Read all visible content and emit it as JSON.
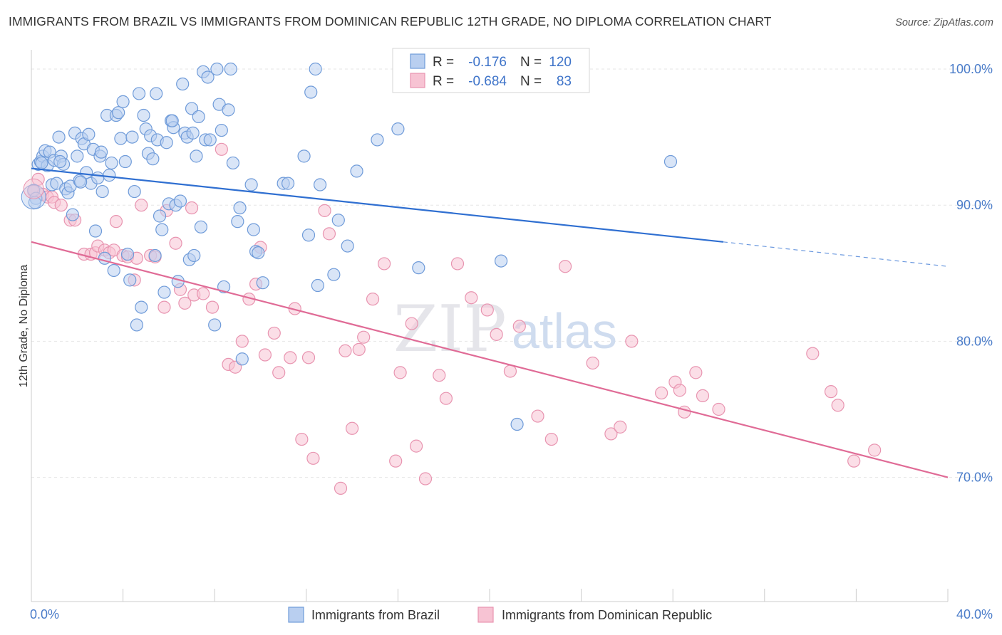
{
  "title": "IMMIGRANTS FROM BRAZIL VS IMMIGRANTS FROM DOMINICAN REPUBLIC 12TH GRADE, NO DIPLOMA CORRELATION CHART",
  "source": "Source: ZipAtlas.com",
  "watermark": {
    "zip": "ZIP",
    "atlas": "atlas"
  },
  "legend": {
    "r_label": "R =",
    "n_label": "N =",
    "rows": [
      {
        "r": "-0.176",
        "n": "120"
      },
      {
        "r": "-0.684",
        "n": "83"
      }
    ]
  },
  "bottom_legend": [
    "Immigrants from Brazil",
    "Immigrants from Dominican Republic"
  ],
  "colors": {
    "brazil_fill": "#b9cff0",
    "brazil_stroke": "#6f9bd9",
    "brazil_line": "#2f6fd1",
    "dr_fill": "#f7c3d3",
    "dr_stroke": "#e894b0",
    "dr_line": "#e06b96",
    "grid": "#e6e6e6",
    "axis_text": "#4a7cc9"
  },
  "chart_data": {
    "type": "scatter",
    "title": "IMMIGRANTS FROM BRAZIL VS IMMIGRANTS FROM DOMINICAN REPUBLIC 12TH GRADE, NO DIPLOMA CORRELATION CHART",
    "xlabel": "",
    "ylabel": "12th Grade, No Diploma",
    "x_tick_labels": [
      "0.0%",
      "40.0%"
    ],
    "y_tick_labels": [
      "100.0%",
      "90.0%",
      "80.0%",
      "70.0%"
    ],
    "y_ticks": [
      100,
      90,
      80,
      70
    ],
    "xlim": [
      0,
      40
    ],
    "ylim": [
      60.5,
      101.5
    ],
    "grid": true,
    "legend_position": "top-center",
    "series": [
      {
        "name": "Immigrants from Brazil",
        "R": -0.176,
        "N": 120,
        "trend": {
          "x0": 0,
          "y0": 92.7,
          "x1": 30.2,
          "y1": 87.3,
          "dashed_to_x": 40,
          "dashed_to_y": 85.5
        },
        "points": [
          [
            0.1,
            91.1
          ],
          [
            0.2,
            90.5
          ],
          [
            0.3,
            93.0
          ],
          [
            0.4,
            93.2
          ],
          [
            0.5,
            93.6
          ],
          [
            0.6,
            94.0
          ],
          [
            0.7,
            92.9
          ],
          [
            0.8,
            93.9
          ],
          [
            0.9,
            91.5
          ],
          [
            1.0,
            93.3
          ],
          [
            1.1,
            91.6
          ],
          [
            1.2,
            95.0
          ],
          [
            1.3,
            93.6
          ],
          [
            1.4,
            93.0
          ],
          [
            1.5,
            91.2
          ],
          [
            1.6,
            90.9
          ],
          [
            1.7,
            91.4
          ],
          [
            1.8,
            89.3
          ],
          [
            1.9,
            95.3
          ],
          [
            2.0,
            93.6
          ],
          [
            2.1,
            91.8
          ],
          [
            2.2,
            94.9
          ],
          [
            2.3,
            94.5
          ],
          [
            2.4,
            92.4
          ],
          [
            2.5,
            95.2
          ],
          [
            2.6,
            91.6
          ],
          [
            2.7,
            94.1
          ],
          [
            2.8,
            88.1
          ],
          [
            2.9,
            92.0
          ],
          [
            3.0,
            93.6
          ],
          [
            3.1,
            91.0
          ],
          [
            3.2,
            86.1
          ],
          [
            3.3,
            96.6
          ],
          [
            3.4,
            92.2
          ],
          [
            3.5,
            93.1
          ],
          [
            3.6,
            85.2
          ],
          [
            3.7,
            96.6
          ],
          [
            3.8,
            96.8
          ],
          [
            3.9,
            94.9
          ],
          [
            4.0,
            97.6
          ],
          [
            4.1,
            93.2
          ],
          [
            4.2,
            86.4
          ],
          [
            4.3,
            84.5
          ],
          [
            4.4,
            95.0
          ],
          [
            4.5,
            91.0
          ],
          [
            4.6,
            81.2
          ],
          [
            4.7,
            98.2
          ],
          [
            4.8,
            82.5
          ],
          [
            4.9,
            96.6
          ],
          [
            5.0,
            95.6
          ],
          [
            5.1,
            93.8
          ],
          [
            5.2,
            95.1
          ],
          [
            5.3,
            93.4
          ],
          [
            5.4,
            86.3
          ],
          [
            5.5,
            94.8
          ],
          [
            5.6,
            89.2
          ],
          [
            5.7,
            88.2
          ],
          [
            5.8,
            83.6
          ],
          [
            5.9,
            94.6
          ],
          [
            6.0,
            90.1
          ],
          [
            6.1,
            96.2
          ],
          [
            6.2,
            95.7
          ],
          [
            6.3,
            90.0
          ],
          [
            6.4,
            84.4
          ],
          [
            6.5,
            90.3
          ],
          [
            6.6,
            98.9
          ],
          [
            6.7,
            95.3
          ],
          [
            6.8,
            95.0
          ],
          [
            6.9,
            86.0
          ],
          [
            7.0,
            97.1
          ],
          [
            7.1,
            86.3
          ],
          [
            7.2,
            93.6
          ],
          [
            7.3,
            96.5
          ],
          [
            7.4,
            88.4
          ],
          [
            7.5,
            99.8
          ],
          [
            7.6,
            94.8
          ],
          [
            7.7,
            99.4
          ],
          [
            7.8,
            94.8
          ],
          [
            8.0,
            81.2
          ],
          [
            8.1,
            100.0
          ],
          [
            8.2,
            97.4
          ],
          [
            8.3,
            95.5
          ],
          [
            8.4,
            84.0
          ],
          [
            8.6,
            97.0
          ],
          [
            8.7,
            100.0
          ],
          [
            8.8,
            93.1
          ],
          [
            9.0,
            88.8
          ],
          [
            9.1,
            89.8
          ],
          [
            9.2,
            78.7
          ],
          [
            9.6,
            91.5
          ],
          [
            9.7,
            88.2
          ],
          [
            9.8,
            86.6
          ],
          [
            9.9,
            86.5
          ],
          [
            10.1,
            84.3
          ],
          [
            11.0,
            91.6
          ],
          [
            11.2,
            91.6
          ],
          [
            11.9,
            93.6
          ],
          [
            12.1,
            87.8
          ],
          [
            12.2,
            98.3
          ],
          [
            12.4,
            100.0
          ],
          [
            12.5,
            84.1
          ],
          [
            12.6,
            91.5
          ],
          [
            13.2,
            84.9
          ],
          [
            13.4,
            88.9
          ],
          [
            13.8,
            87.0
          ],
          [
            14.2,
            92.5
          ],
          [
            15.1,
            94.8
          ],
          [
            16.0,
            95.6
          ],
          [
            16.9,
            85.4
          ],
          [
            20.5,
            85.9
          ],
          [
            21.2,
            73.9
          ],
          [
            27.9,
            93.2
          ],
          [
            0.15,
            90.2
          ],
          [
            0.45,
            93.1
          ],
          [
            1.25,
            93.2
          ],
          [
            2.15,
            91.7
          ],
          [
            3.05,
            93.9
          ],
          [
            5.45,
            98.2
          ],
          [
            6.15,
            96.2
          ],
          [
            7.05,
            95.3
          ]
        ]
      },
      {
        "name": "Immigrants from Dominican Republic",
        "R": -0.684,
        "N": 83,
        "trend": {
          "x0": 0,
          "y0": 87.3,
          "x1": 40,
          "y1": 70.0
        },
        "points": [
          [
            0.1,
            91.0
          ],
          [
            0.3,
            91.9
          ],
          [
            0.5,
            90.8
          ],
          [
            0.7,
            90.6
          ],
          [
            0.9,
            90.6
          ],
          [
            1.0,
            90.2
          ],
          [
            1.3,
            90.0
          ],
          [
            1.7,
            88.9
          ],
          [
            1.9,
            88.9
          ],
          [
            2.3,
            86.4
          ],
          [
            2.6,
            86.4
          ],
          [
            2.8,
            86.5
          ],
          [
            2.9,
            87.0
          ],
          [
            3.2,
            86.7
          ],
          [
            3.4,
            86.5
          ],
          [
            3.6,
            86.7
          ],
          [
            3.7,
            88.8
          ],
          [
            4.0,
            86.3
          ],
          [
            4.2,
            86.2
          ],
          [
            4.5,
            84.5
          ],
          [
            4.6,
            86.1
          ],
          [
            4.8,
            90.0
          ],
          [
            5.2,
            86.3
          ],
          [
            5.4,
            86.2
          ],
          [
            5.8,
            82.5
          ],
          [
            5.9,
            89.6
          ],
          [
            6.3,
            87.2
          ],
          [
            6.5,
            83.8
          ],
          [
            6.7,
            82.8
          ],
          [
            7.0,
            89.8
          ],
          [
            7.1,
            83.4
          ],
          [
            7.5,
            83.5
          ],
          [
            7.9,
            82.5
          ],
          [
            8.3,
            94.1
          ],
          [
            8.6,
            78.3
          ],
          [
            8.9,
            78.1
          ],
          [
            9.2,
            80.0
          ],
          [
            9.5,
            83.1
          ],
          [
            9.8,
            84.2
          ],
          [
            10.0,
            86.9
          ],
          [
            10.2,
            79.0
          ],
          [
            10.6,
            80.6
          ],
          [
            10.8,
            77.7
          ],
          [
            11.3,
            78.8
          ],
          [
            11.5,
            82.4
          ],
          [
            11.8,
            72.8
          ],
          [
            12.1,
            78.8
          ],
          [
            12.3,
            71.4
          ],
          [
            12.8,
            89.6
          ],
          [
            13.0,
            87.9
          ],
          [
            13.5,
            69.2
          ],
          [
            13.7,
            79.3
          ],
          [
            14.0,
            73.6
          ],
          [
            14.3,
            79.4
          ],
          [
            14.5,
            80.3
          ],
          [
            14.9,
            83.1
          ],
          [
            15.4,
            85.7
          ],
          [
            15.9,
            71.2
          ],
          [
            16.1,
            77.7
          ],
          [
            16.6,
            81.3
          ],
          [
            16.8,
            72.3
          ],
          [
            17.2,
            69.9
          ],
          [
            17.8,
            77.5
          ],
          [
            18.1,
            75.8
          ],
          [
            18.6,
            85.7
          ],
          [
            19.2,
            83.2
          ],
          [
            19.9,
            82.3
          ],
          [
            20.3,
            80.5
          ],
          [
            20.9,
            77.8
          ],
          [
            21.3,
            81.1
          ],
          [
            22.1,
            74.5
          ],
          [
            22.7,
            72.8
          ],
          [
            23.3,
            85.5
          ],
          [
            24.5,
            78.4
          ],
          [
            25.3,
            73.2
          ],
          [
            25.7,
            73.7
          ],
          [
            26.2,
            80.0
          ],
          [
            27.5,
            76.2
          ],
          [
            28.1,
            77.0
          ],
          [
            28.5,
            74.8
          ],
          [
            29.0,
            77.7
          ],
          [
            30.0,
            75.0
          ],
          [
            34.1,
            79.1
          ]
        ]
      }
    ],
    "extra_pink_points": [
      [
        29.3,
        76.0
      ],
      [
        34.9,
        76.3
      ],
      [
        35.2,
        75.3
      ],
      [
        35.9,
        71.2
      ],
      [
        36.8,
        72.0
      ],
      [
        28.3,
        76.4
      ]
    ]
  }
}
